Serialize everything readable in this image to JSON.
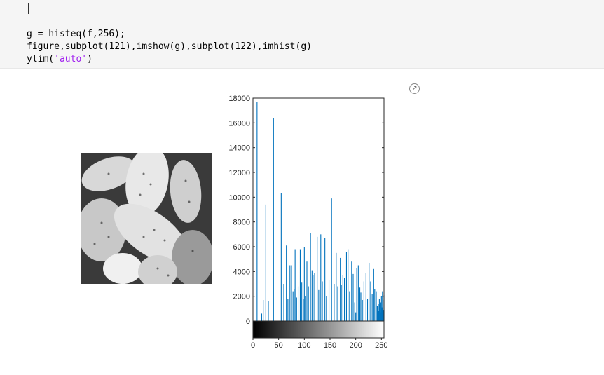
{
  "code_cell": {
    "lines": [
      {
        "parts": [
          {
            "text": "g = histeq(f,256);",
            "str": false
          }
        ]
      },
      {
        "parts": [
          {
            "text": "figure,subplot(121),imshow(g),subplot(122),imhist(g)",
            "str": false
          }
        ]
      },
      {
        "parts": [
          {
            "text": "ylim(",
            "str": false
          },
          {
            "text": "'auto'",
            "str": true
          },
          {
            "text": ")",
            "str": false
          }
        ]
      }
    ]
  },
  "output": {
    "popout_icon": "popout-arrow-icon",
    "image_description_icon": "pollen-grayscale-image"
  },
  "chart_data": {
    "type": "bar",
    "xlim": [
      0,
      255
    ],
    "ylim": [
      0,
      18000
    ],
    "x_ticks": [
      0,
      50,
      100,
      150,
      200,
      250
    ],
    "y_ticks": [
      0,
      2000,
      4000,
      6000,
      8000,
      10000,
      12000,
      14000,
      16000,
      18000
    ],
    "xlabel": "",
    "ylabel": "",
    "title": "",
    "colorbar": "grayscale 0-255",
    "bar_color": "#0072bd",
    "bins": [
      [
        8,
        17700
      ],
      [
        17,
        600
      ],
      [
        20,
        1700
      ],
      [
        25,
        9400
      ],
      [
        30,
        1600
      ],
      [
        40,
        16400
      ],
      [
        55,
        10300
      ],
      [
        60,
        3000
      ],
      [
        65,
        6100
      ],
      [
        68,
        1800
      ],
      [
        72,
        4500
      ],
      [
        75,
        4500
      ],
      [
        78,
        2400
      ],
      [
        80,
        2600
      ],
      [
        82,
        5800
      ],
      [
        85,
        1900
      ],
      [
        88,
        2800
      ],
      [
        92,
        5800
      ],
      [
        95,
        3100
      ],
      [
        98,
        1800
      ],
      [
        100,
        6000
      ],
      [
        102,
        2000
      ],
      [
        105,
        4800
      ],
      [
        108,
        2800
      ],
      [
        112,
        7100
      ],
      [
        115,
        4100
      ],
      [
        117,
        3700
      ],
      [
        120,
        3900
      ],
      [
        125,
        6800
      ],
      [
        128,
        2500
      ],
      [
        132,
        7000
      ],
      [
        135,
        3200
      ],
      [
        140,
        6700
      ],
      [
        143,
        2000
      ],
      [
        148,
        3300
      ],
      [
        153,
        9900
      ],
      [
        158,
        3000
      ],
      [
        162,
        5500
      ],
      [
        165,
        2800
      ],
      [
        170,
        5100
      ],
      [
        172,
        2900
      ],
      [
        175,
        3700
      ],
      [
        178,
        3500
      ],
      [
        182,
        5600
      ],
      [
        185,
        5800
      ],
      [
        188,
        2400
      ],
      [
        192,
        4800
      ],
      [
        195,
        3800
      ],
      [
        198,
        1500
      ],
      [
        200,
        700
      ],
      [
        202,
        4300
      ],
      [
        205,
        4500
      ],
      [
        208,
        2700
      ],
      [
        210,
        2300
      ],
      [
        213,
        1700
      ],
      [
        216,
        3200
      ],
      [
        220,
        3900
      ],
      [
        223,
        1800
      ],
      [
        226,
        4700
      ],
      [
        229,
        3200
      ],
      [
        232,
        2200
      ],
      [
        235,
        4200
      ],
      [
        237,
        2600
      ],
      [
        240,
        2400
      ],
      [
        242,
        1200
      ],
      [
        243,
        1000
      ],
      [
        244,
        1400
      ],
      [
        245,
        800
      ],
      [
        246,
        1800
      ],
      [
        247,
        1300
      ],
      [
        248,
        700
      ],
      [
        249,
        1500
      ],
      [
        250,
        2000
      ],
      [
        251,
        1100
      ],
      [
        252,
        2400
      ],
      [
        253,
        1700
      ],
      [
        254,
        900
      ],
      [
        255,
        2100
      ]
    ]
  }
}
